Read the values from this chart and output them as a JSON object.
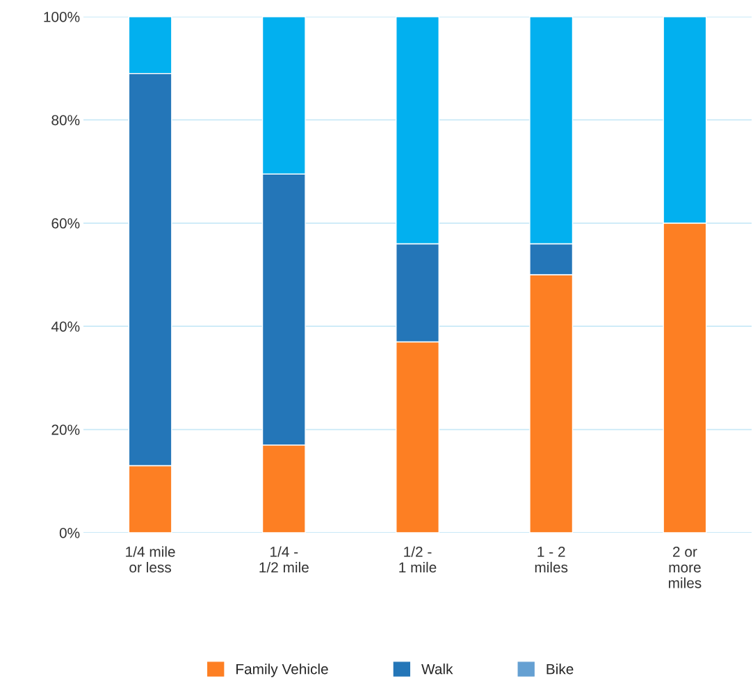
{
  "chart_data": {
    "type": "bar",
    "stacked": true,
    "categories": [
      "1/4 mile\nor less",
      "1/4 -\n1/2 mile",
      "1/2 -\n1 mile",
      "1 - 2\nmiles",
      "2 or\nmore\nmiles"
    ],
    "series": [
      {
        "name": "Family Vehicle",
        "color": "#fd7f23",
        "values": [
          13,
          17,
          37,
          50,
          60
        ]
      },
      {
        "name": "Walk",
        "color": "#2476b8",
        "values": [
          76,
          52.5,
          19,
          6,
          null
        ]
      },
      {
        "name": "Bike",
        "color": "#65a0d2",
        "values": [
          null,
          null,
          null,
          null,
          null
        ]
      },
      {
        "color": "#02b0ef",
        "values": [
          11,
          30.5,
          44,
          44,
          40
        ]
      }
    ],
    "ylim": [
      0,
      100
    ],
    "yticks": [
      {
        "value": 0,
        "label": "0%"
      },
      {
        "value": 20,
        "label": "20%"
      },
      {
        "value": 40,
        "label": "40%"
      },
      {
        "value": 60,
        "label": "60%"
      },
      {
        "value": 80,
        "label": "80%"
      },
      {
        "value": 100,
        "label": "100%"
      }
    ],
    "grid": "y",
    "legend": "bottom"
  }
}
